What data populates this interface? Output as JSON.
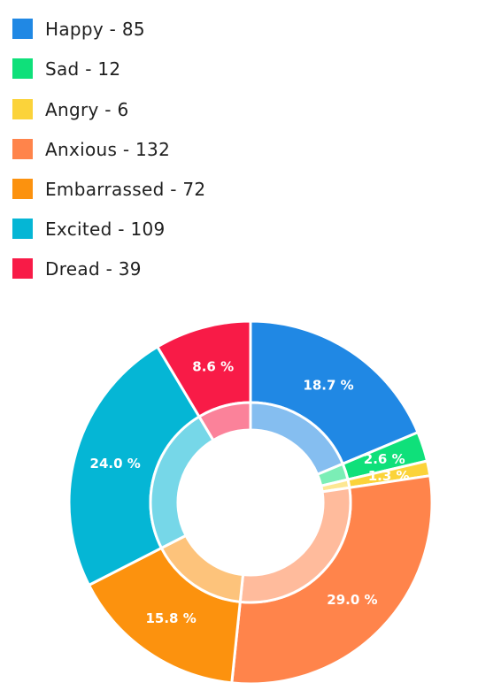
{
  "legend": {
    "items": [
      {
        "label": "Happy - 85",
        "color": "#2088E4"
      },
      {
        "label": "Sad - 12",
        "color": "#0FE07A"
      },
      {
        "label": "Angry - 6",
        "color": "#FBD33A"
      },
      {
        "label": "Anxious - 132",
        "color": "#FF844B"
      },
      {
        "label": "Embarrassed - 72",
        "color": "#FC920E"
      },
      {
        "label": "Excited - 109",
        "color": "#05B6D5"
      },
      {
        "label": "Dread - 39",
        "color": "#F81B47"
      }
    ]
  },
  "chart_data": {
    "type": "pie",
    "variant": "donut",
    "legend_position": "top-left",
    "categories": [
      "Happy",
      "Sad",
      "Angry",
      "Anxious",
      "Embarrassed",
      "Excited",
      "Dread"
    ],
    "values": [
      85,
      12,
      6,
      132,
      72,
      109,
      39
    ],
    "percent_labels": [
      "18.7 %",
      "2.6 %",
      "1.3 %",
      "29.0 %",
      "15.8 %",
      "24.0 %",
      "8.6 %"
    ],
    "colors": [
      "#2088E4",
      "#0FE07A",
      "#FBD33A",
      "#FF844B",
      "#FC920E",
      "#05B6D5",
      "#F81B47"
    ]
  }
}
